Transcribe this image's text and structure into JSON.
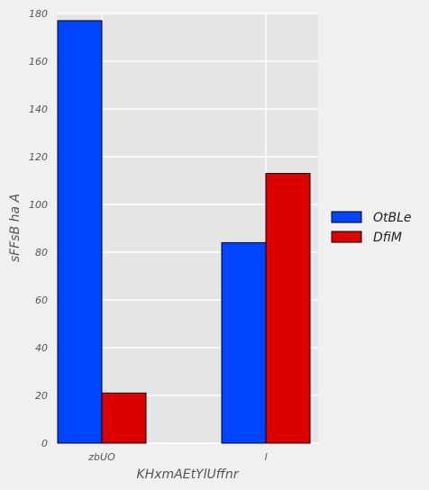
{
  "chart_data": {
    "type": "bar",
    "categories": [
      "zbUO",
      "l"
    ],
    "series": [
      {
        "name": "OtBLe",
        "color": "#0044ff",
        "values": [
          177,
          84
        ]
      },
      {
        "name": "DfiM",
        "color": "#dd0000",
        "values": [
          21,
          113
        ]
      }
    ],
    "title": "",
    "xlabel": "KHxmAEtYlUffnr",
    "ylabel": "sFFsB ha A",
    "ylim": [
      0,
      180
    ],
    "yticks": [
      0,
      20,
      40,
      60,
      80,
      100,
      120,
      140,
      160,
      180
    ],
    "grid": true,
    "legend_position": "right",
    "colors": {
      "plot_background": "#e5e5e5",
      "figure_background": "#f0f0f0",
      "grid": "#ffffff",
      "bar_edge": "#000000"
    }
  }
}
